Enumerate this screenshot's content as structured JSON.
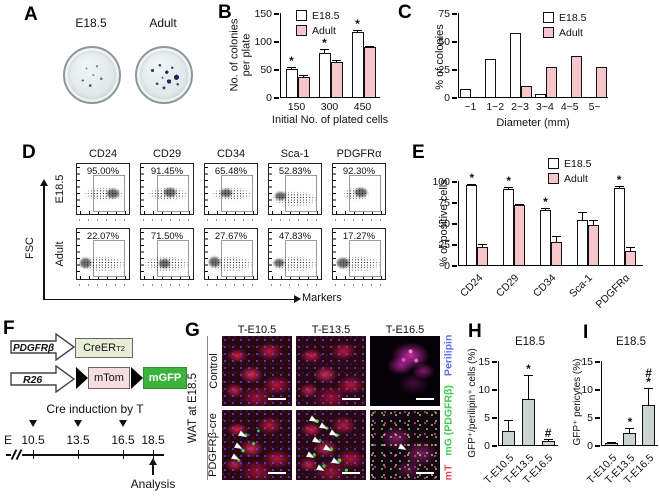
{
  "colors": {
    "bar_white": "#ffffff",
    "bar_pink": "#f6c6cb",
    "bar_gray": "#ccd3d3",
    "stain_mt": "#e8435c",
    "stain_mg": "#3ecb4e",
    "stain_perilipin": "#5b6cf0",
    "mgfp_box": "#3cb43c",
    "mtom_box": "#f6dde2",
    "creer_box": "#e8eed6"
  },
  "panels": {
    "A": {
      "letter": "A",
      "dish_labels": [
        "E18.5",
        "Adult"
      ]
    },
    "B": {
      "letter": "B"
    },
    "C": {
      "letter": "C"
    },
    "D": {
      "letter": "D",
      "col_headers": [
        "CD24",
        "CD29",
        "CD34",
        "Sca-1",
        "PDGFRα"
      ],
      "row_labels": [
        "E18.5",
        "Adult"
      ],
      "percentages": [
        [
          "95.00%",
          "91.45%",
          "65.48%",
          "52.83%",
          "92.30%"
        ],
        [
          "22.07%",
          "71.50%",
          "27.67%",
          "47.83%",
          "17.27%"
        ]
      ],
      "y_axis_label": "FSC",
      "x_axis_label": "Markers"
    },
    "E": {
      "letter": "E"
    },
    "F": {
      "letter": "F",
      "promoter1": "PDGFRβ",
      "gene1": "CreER",
      "gene1_sup": "T2",
      "promoter2": "R26",
      "cassette1": "mTom",
      "cassette2": "mGFP",
      "induction_label": "Cre induction by T",
      "axis_prefix": "E",
      "timepoints": [
        "10.5",
        "13.5",
        "16.5",
        "18.5"
      ],
      "analysis_label": "Analysis"
    },
    "G": {
      "letter": "G",
      "col_headers": [
        "T-E10.5",
        "T-E13.5",
        "T-E16.5"
      ],
      "row_labels": [
        "Control",
        "PDGFRβ-cre"
      ],
      "side_label": "WAT at E18.5",
      "stain_legend": [
        {
          "text": "mT",
          "color": "#e8435c"
        },
        {
          "text": "mG (PDGFRβ)",
          "color": "#3ecb4e"
        },
        {
          "text": "Perilipin",
          "color": "#5b6cf0"
        }
      ]
    },
    "H": {
      "letter": "H"
    },
    "I": {
      "letter": "I"
    }
  },
  "chart_data": [
    {
      "id": "B",
      "type": "bar",
      "ylabel": "No. of colonies\nper plate",
      "xlabel": "Initial No. of plated cells",
      "yticks": [
        0,
        50,
        100,
        150
      ],
      "ylim": [
        0,
        150
      ],
      "categories": [
        "150",
        "300",
        "450"
      ],
      "legend_position": "top-left",
      "series": [
        {
          "name": "E18.5",
          "color": "#ffffff",
          "values": [
            50,
            79,
            116
          ],
          "errors": [
            4,
            6,
            4
          ],
          "stars": [
            "*",
            "*",
            "*"
          ]
        },
        {
          "name": "Adult",
          "color": "#f6c6cb",
          "values": [
            35,
            63,
            89
          ],
          "errors": [
            4,
            4,
            3
          ]
        }
      ]
    },
    {
      "id": "C",
      "type": "bar",
      "ylabel": "% of colonies",
      "xlabel": "Diameter (mm)",
      "yticks": [
        0,
        25,
        50,
        75
      ],
      "ylim": [
        0,
        75
      ],
      "categories": [
        "~1",
        "1~2",
        "2~3",
        "3~4",
        "4~5",
        "5~"
      ],
      "legend_position": "top-right",
      "series": [
        {
          "name": "E18.5",
          "color": "#ffffff",
          "values": [
            7,
            34,
            57,
            3,
            0,
            0
          ]
        },
        {
          "name": "Adult",
          "color": "#f6c6cb",
          "values": [
            0,
            0,
            10,
            27,
            37,
            27
          ]
        }
      ]
    },
    {
      "id": "E",
      "type": "bar",
      "ylabel": "% of positive cells",
      "xlabel": "",
      "yticks": [
        0,
        25,
        50,
        75,
        100
      ],
      "ylim": [
        0,
        100
      ],
      "categories": [
        "CD24",
        "CD29",
        "CD34",
        "Sca-1",
        "PDGFRα"
      ],
      "rotate_xlabels": true,
      "legend_position": "top-right",
      "series": [
        {
          "name": "E18.5",
          "color": "#ffffff",
          "values": [
            95,
            91,
            65,
            53,
            92
          ],
          "errors": [
            2,
            2,
            3,
            10,
            2
          ],
          "stars": [
            "*",
            "*",
            "*",
            null,
            "*"
          ]
        },
        {
          "name": "Adult",
          "color": "#f6c6cb",
          "values": [
            22,
            71,
            27,
            48,
            17
          ],
          "errors": [
            3,
            2,
            8,
            6,
            5
          ]
        }
      ]
    },
    {
      "id": "H",
      "type": "bar",
      "title": "E18.5",
      "ylabel": "GFP⁺/perilipin⁺ cells (%)",
      "xlabel": "",
      "yticks": [
        0,
        5,
        10,
        15
      ],
      "ylim": [
        0,
        15
      ],
      "categories": [
        "T-E10.5",
        "T-E13.5",
        "T-E16.5"
      ],
      "rotate_xlabels": true,
      "series": [
        {
          "name": "E18.5",
          "color": "#ccd3d3",
          "values": [
            2.5,
            8.3,
            0.7
          ],
          "errors": [
            2,
            4.2,
            0.4
          ],
          "stars": [
            null,
            "*",
            "#"
          ]
        }
      ]
    },
    {
      "id": "I",
      "type": "bar",
      "title": "E18.5",
      "ylabel": "GFP⁺ pericytes (%)",
      "xlabel": "",
      "yticks": [
        0,
        5,
        10,
        15
      ],
      "ylim": [
        0,
        15
      ],
      "categories": [
        "T-E10.5",
        "T-E13.5",
        "T-E16.5"
      ],
      "rotate_xlabels": true,
      "series": [
        {
          "name": "E18.5",
          "color": "#ccd3d3",
          "values": [
            0.3,
            2.2,
            7.2
          ],
          "errors": [
            0.2,
            0.9,
            2.9
          ],
          "stars": [
            null,
            "*",
            "#\n*"
          ]
        }
      ]
    }
  ]
}
